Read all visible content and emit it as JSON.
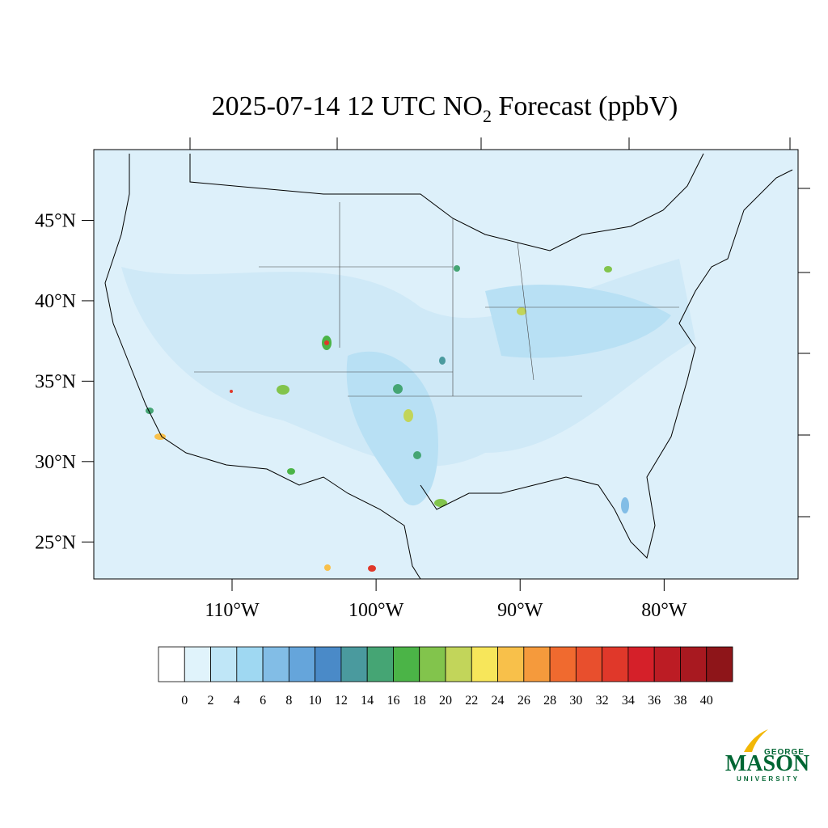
{
  "map": {
    "title": {
      "prefix": "2025-07-14 12 UTC NO",
      "subscript": "2",
      "suffix": " Forecast (ppbV)"
    },
    "latlim": [
      22.7,
      49.4
    ],
    "lonlim": [
      -119.6,
      -70.7
    ],
    "lat_ticks": [
      {
        "value": 25,
        "label": "25°N"
      },
      {
        "value": 30,
        "label": "30°N"
      },
      {
        "value": 35,
        "label": "35°N"
      },
      {
        "value": 40,
        "label": "40°N"
      },
      {
        "value": 45,
        "label": "45°N"
      }
    ],
    "lon_ticks": [
      {
        "value": -110,
        "label": "110°W"
      },
      {
        "value": -100,
        "label": "100°W"
      },
      {
        "value": -90,
        "label": "90°W"
      },
      {
        "value": -80,
        "label": "80°W"
      }
    ],
    "colorbar": {
      "levels": [
        0,
        2,
        4,
        6,
        8,
        10,
        12,
        14,
        16,
        18,
        20,
        22,
        24,
        26,
        28,
        30,
        32,
        34,
        36,
        38,
        40
      ],
      "colors": [
        "#ffffff",
        "#e0f3fb",
        "#bfe6f7",
        "#9fd8f2",
        "#82bde6",
        "#65a5db",
        "#4a8ac8",
        "#4a9a9e",
        "#45a574",
        "#4bb447",
        "#82c44c",
        "#c2d55a",
        "#f7e65a",
        "#f8c04a",
        "#f59a3c",
        "#f06a2f",
        "#e84f2d",
        "#e0382a",
        "#d52029",
        "#bc1c24",
        "#a81920",
        "#8e1519"
      ]
    }
  },
  "logo": {
    "top": "GEORGE",
    "main": "MASON",
    "bottom": "UNIVERSITY"
  }
}
